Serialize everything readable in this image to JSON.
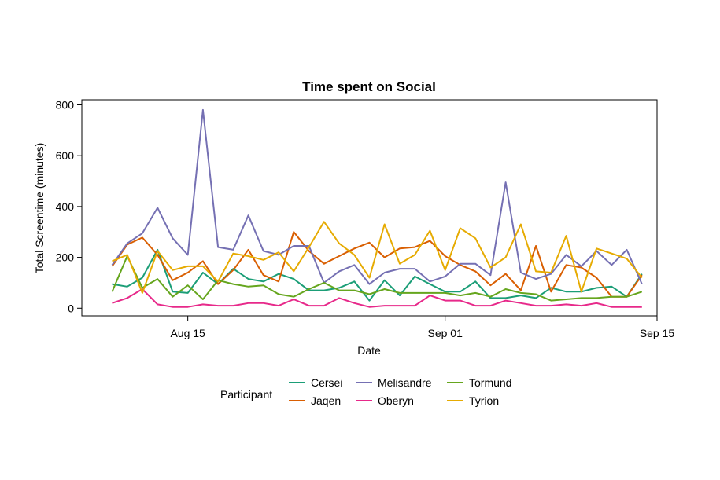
{
  "chart_data": {
    "type": "line",
    "title": "Time spent on Social",
    "xlabel": "Date",
    "ylabel": "Total Screentime (minutes)",
    "x_start": "2023-08-10",
    "x_ticks": [
      {
        "label": "Aug 15",
        "date": "2023-08-15"
      },
      {
        "label": "Sep 01",
        "date": "2023-09-01"
      },
      {
        "label": "Sep 15",
        "date": "2023-09-15"
      }
    ],
    "y_ticks": [
      0,
      200,
      400,
      600,
      800
    ],
    "xlim": [
      "2023-08-08",
      "2023-09-15"
    ],
    "ylim": [
      -30,
      820
    ],
    "grid": false,
    "legend_title": "Participant",
    "legend_position": "bottom",
    "dates": [
      "2023-08-10",
      "2023-08-11",
      "2023-08-12",
      "2023-08-13",
      "2023-08-14",
      "2023-08-15",
      "2023-08-16",
      "2023-08-17",
      "2023-08-18",
      "2023-08-19",
      "2023-08-20",
      "2023-08-21",
      "2023-08-22",
      "2023-08-23",
      "2023-08-24",
      "2023-08-25",
      "2023-08-26",
      "2023-08-27",
      "2023-08-28",
      "2023-08-29",
      "2023-08-30",
      "2023-08-31",
      "2023-09-01",
      "2023-09-02",
      "2023-09-03",
      "2023-09-04",
      "2023-09-05",
      "2023-09-06",
      "2023-09-07",
      "2023-09-08",
      "2023-09-09",
      "2023-09-10",
      "2023-09-11",
      "2023-09-12",
      "2023-09-13",
      "2023-09-14"
    ],
    "series": [
      {
        "name": "Cersei",
        "color": "#1B9E77",
        "values": [
          95,
          85,
          120,
          230,
          65,
          60,
          140,
          95,
          155,
          115,
          105,
          135,
          115,
          70,
          70,
          80,
          105,
          30,
          110,
          50,
          125,
          95,
          65,
          65,
          105,
          40,
          40,
          50,
          40,
          80,
          65,
          65,
          80,
          85,
          45,
          135
        ]
      },
      {
        "name": "Jaqen",
        "color": "#D95F02",
        "values": [
          165,
          250,
          278,
          210,
          110,
          140,
          185,
          95,
          150,
          230,
          130,
          105,
          300,
          225,
          175,
          205,
          235,
          258,
          200,
          235,
          240,
          265,
          205,
          170,
          145,
          90,
          135,
          70,
          245,
          65,
          170,
          160,
          120,
          45,
          45,
          130
        ]
      },
      {
        "name": "Melisandre",
        "color": "#7570B3",
        "values": [
          170,
          255,
          295,
          395,
          275,
          210,
          780,
          240,
          230,
          365,
          225,
          210,
          245,
          245,
          100,
          145,
          170,
          95,
          140,
          155,
          155,
          105,
          125,
          175,
          175,
          130,
          495,
          140,
          115,
          135,
          210,
          165,
          225,
          170,
          230,
          95
        ]
      },
      {
        "name": "Oberyn",
        "color": "#E7298A",
        "values": [
          20,
          40,
          75,
          15,
          5,
          5,
          15,
          10,
          10,
          20,
          20,
          10,
          35,
          10,
          10,
          40,
          20,
          5,
          10,
          10,
          10,
          50,
          30,
          30,
          10,
          10,
          30,
          20,
          10,
          10,
          15,
          10,
          20,
          5,
          5,
          5
        ]
      },
      {
        "name": "Tormund",
        "color": "#66A61E",
        "values": [
          65,
          205,
          80,
          115,
          45,
          90,
          35,
          110,
          95,
          85,
          90,
          55,
          45,
          75,
          100,
          70,
          70,
          55,
          75,
          60,
          60,
          60,
          60,
          50,
          60,
          45,
          75,
          60,
          55,
          30,
          35,
          40,
          40,
          45,
          45,
          65
        ]
      },
      {
        "name": "Tyrion",
        "color": "#E6AB02",
        "values": [
          185,
          210,
          60,
          225,
          150,
          165,
          165,
          105,
          215,
          205,
          190,
          220,
          145,
          240,
          340,
          255,
          210,
          120,
          330,
          175,
          210,
          305,
          150,
          315,
          275,
          160,
          200,
          330,
          145,
          140,
          285,
          65,
          235,
          215,
          195,
          120
        ]
      }
    ]
  }
}
